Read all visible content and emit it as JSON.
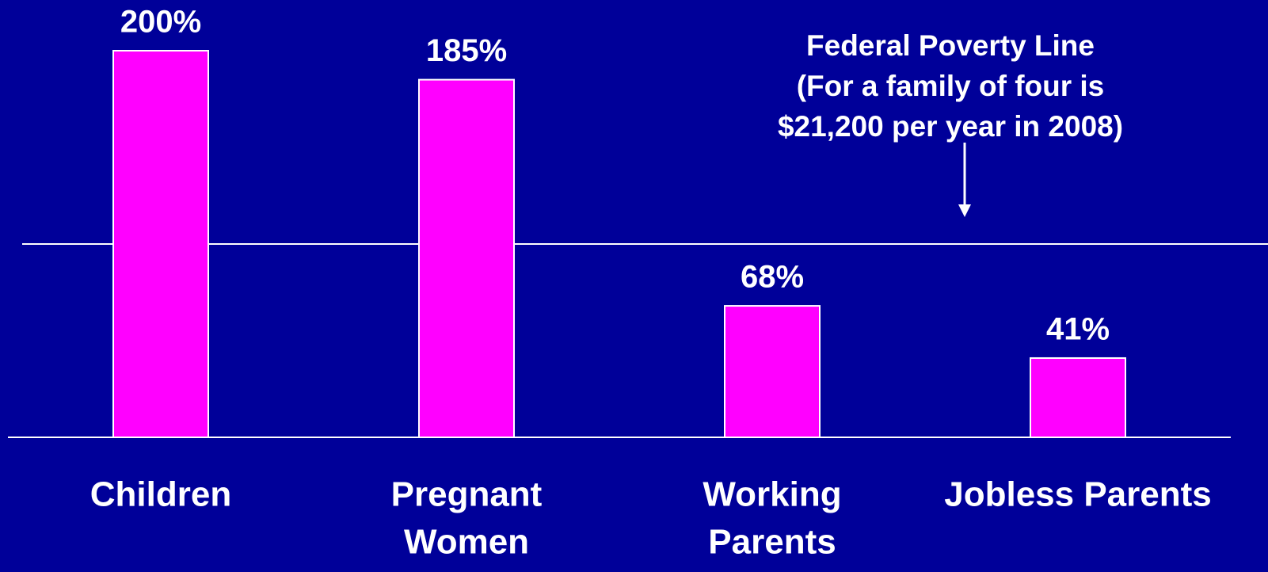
{
  "chart_data": {
    "type": "bar",
    "categories": [
      [
        "Children"
      ],
      [
        "Pregnant",
        "Women"
      ],
      [
        "Working",
        "Parents"
      ],
      [
        "Jobless Parents"
      ]
    ],
    "values": [
      200,
      185,
      68,
      41
    ],
    "value_labels": [
      "200%",
      "185%",
      "68%",
      "41%"
    ],
    "color": "#ff00ff",
    "ylim": [
      0,
      200
    ],
    "reference_value": 100,
    "annotation": [
      "Federal Poverty Line",
      "(For a family of four is",
      "$21,200 per year in 2008)"
    ]
  }
}
